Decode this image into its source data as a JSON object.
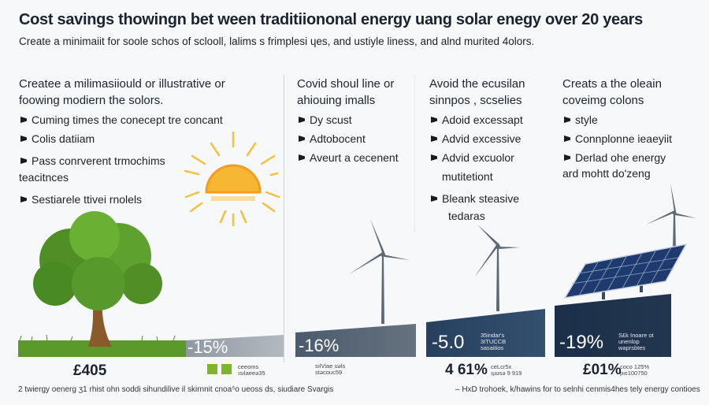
{
  "header": {
    "title": "Cost savings thowingn bet ween traditiiononal energy uang solar enegy over 20 years",
    "subtitle": "Create a minimaiit for soole schos of sclooll, lalims s frimplesi ɥes, and ustiyle liness, and alnd murited 4olors."
  },
  "columns": [
    {
      "heading": "Createe a milimasiiould or illustrative or",
      "subheading": "foowing modiern the solors.",
      "bullets": [
        "Cuming times the conecept tre concant",
        "Colis datiiam",
        "Pass conrverent trmochims",
        "Sestiarele ttivei rnolels"
      ],
      "continuation": "teacitnces"
    },
    {
      "heading": "Covid shoul line  or",
      "subheading": "ahiouing imalls",
      "bullets": [
        "Dy scust",
        "Adtobocent",
        "Aveurt a cecenent"
      ]
    },
    {
      "heading": "Avoid the ecusilan",
      "subheading": "sinnpos , scselies",
      "bullets": [
        "Adoid excessapt",
        "Advid excessive",
        "Advid excuolor",
        "Bleank steasive"
      ],
      "continuations": [
        "mutitetiont",
        "tedaras"
      ]
    },
    {
      "heading": "Creats a the oleain",
      "subheading": "coveimg colons",
      "bullets": [
        "style",
        "Connplonne ieaeyiit",
        "Derlad ohe energy"
      ],
      "continuation": "ard mohtt do'zeng"
    }
  ],
  "bars": [
    {
      "label": "-15%",
      "color": "#9aa2ab"
    },
    {
      "label": "-16%",
      "color": "#4f6072"
    },
    {
      "label": "-5.0",
      "note": "35indar's 3ITUCCB sasaitios",
      "color": "#2b4466"
    },
    {
      "label": "-19%",
      "note": "S£k Inoare ot unenlop waprsbtes",
      "color": "#1f3350"
    }
  ],
  "values": [
    {
      "value": "£405"
    },
    {
      "value": "",
      "note": "ceeoms ısılaeeə35"
    },
    {
      "value": "",
      "note": "sılViae uəls stəcouc59"
    },
    {
      "value": "4 61%",
      "note": "ceLcr5x ıµusə 9 919"
    },
    {
      "value": "£01%",
      "note": "coco 125% pıɛ100750"
    }
  ],
  "footer": {
    "left": "2 twiergy oenerg ʒ1 rhist ohn soddi sihundilive il skirnnit cnoa⁵o ueoss ds, siudiare Svargis",
    "right": "–  HxD trohoek, k/hawins for to selnhi cenmis4hes tely energy contioes"
  },
  "colors": {
    "sun": "#f5b82a",
    "grass": "#5b9a2a",
    "legend": "#7fb52a",
    "panel": "#1e3a6e",
    "turbine": "#5c6874"
  },
  "icons": [
    "sun-icon",
    "tree-icon",
    "wind-turbine-icon",
    "solar-panel-icon"
  ]
}
